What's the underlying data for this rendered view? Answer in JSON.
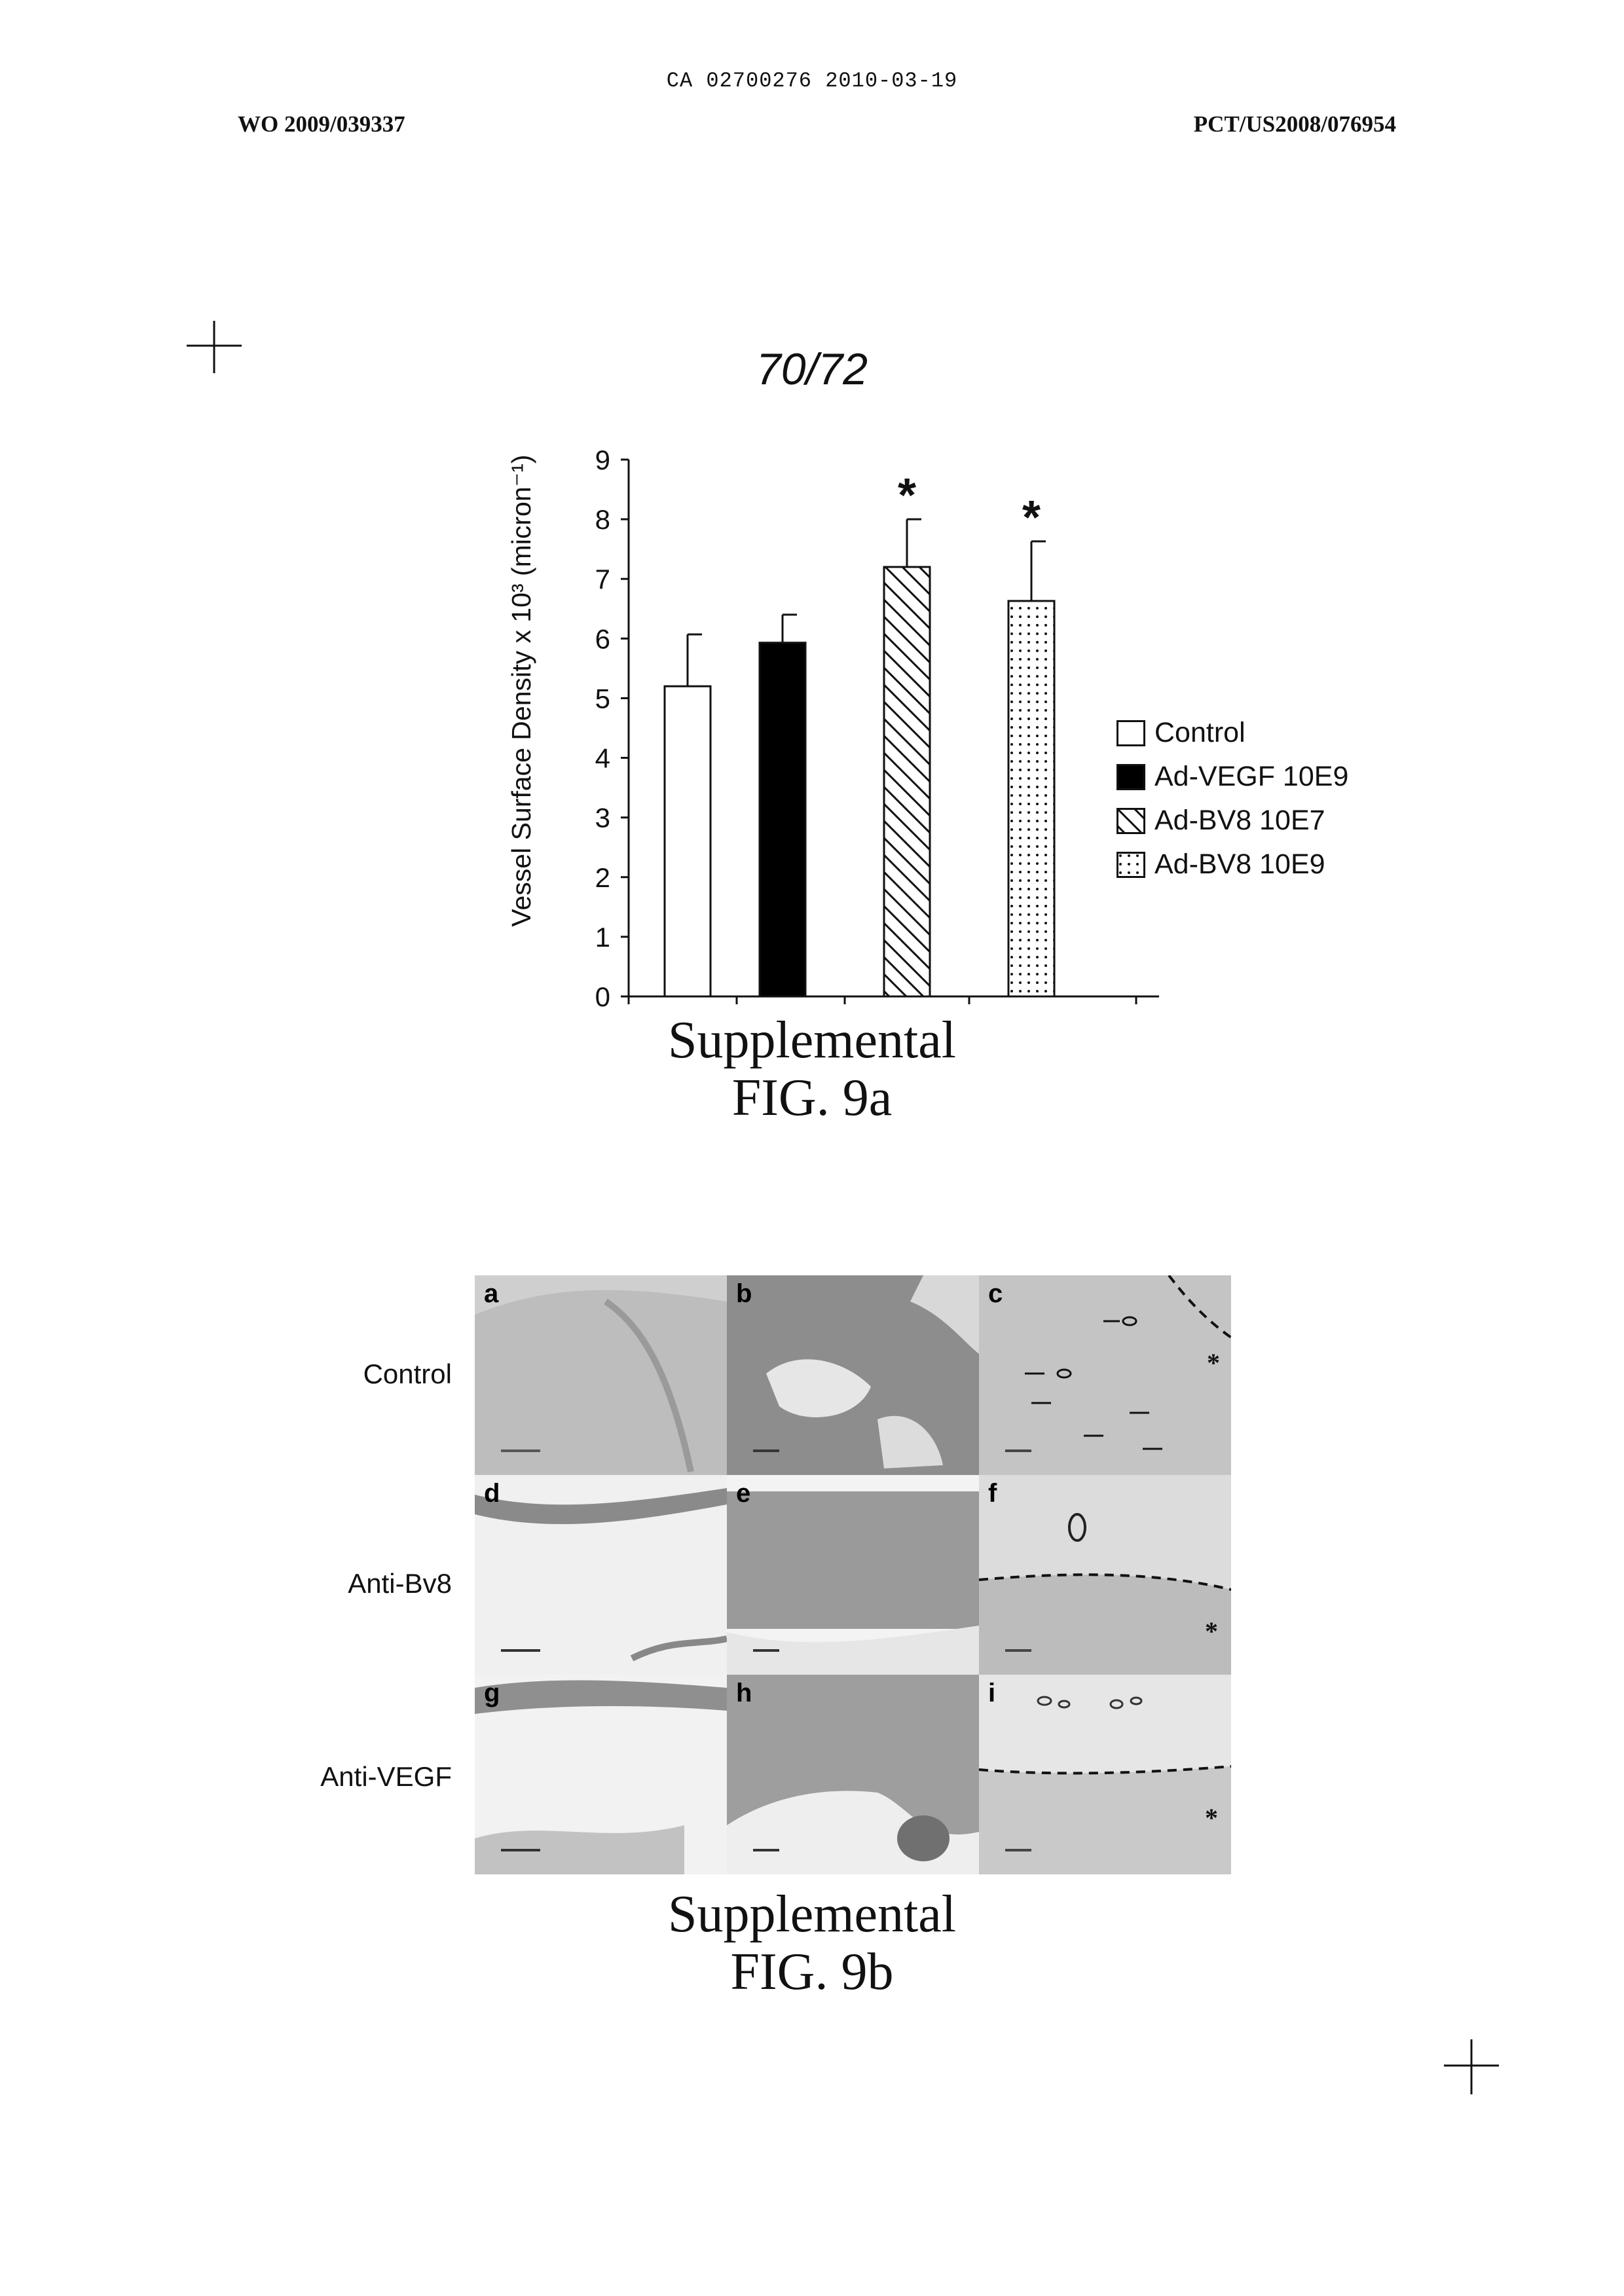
{
  "header": {
    "ca_line": "CA 02700276 2010-03-19",
    "wo_number": "WO 2009/039337",
    "pct_number": "PCT/US2008/076954"
  },
  "page_number": "70/72",
  "fig9a": {
    "caption_line1": "Supplemental",
    "caption_line2": "FIG. 9a"
  },
  "chart_data": {
    "type": "bar",
    "ylabel": "Vessel Surface Density x 10³ (micron⁻¹)",
    "ylim": [
      0,
      9
    ],
    "yticks": [
      "0",
      "1",
      "2",
      "3",
      "4",
      "5",
      "6",
      "7",
      "8",
      "9"
    ],
    "categories": [
      "Control",
      "Ad-VEGF 10E9",
      "Ad-BV8 10E7",
      "Ad-BV8 10E9"
    ],
    "values": [
      5.2,
      5.93,
      7.2,
      6.63
    ],
    "errors": [
      0.87,
      0.47,
      0.8,
      1.0
    ],
    "significance": [
      "",
      "",
      "*",
      "*"
    ],
    "fills": [
      "white",
      "black",
      "diagonal-hatch",
      "dots"
    ],
    "legend": [
      "Control",
      "Ad-VEGF 10E9",
      "Ad-BV8 10E7",
      "Ad-BV8 10E9"
    ],
    "legend_position": "right",
    "grid": false
  },
  "fig9b": {
    "caption_line1": "Supplemental",
    "caption_line2": "FIG. 9b",
    "rows": [
      "Control",
      "Anti-Bv8",
      "Anti-VEGF"
    ],
    "panels": [
      "a",
      "b",
      "c",
      "d",
      "e",
      "f",
      "g",
      "h",
      "i"
    ],
    "asterisk": "*"
  }
}
